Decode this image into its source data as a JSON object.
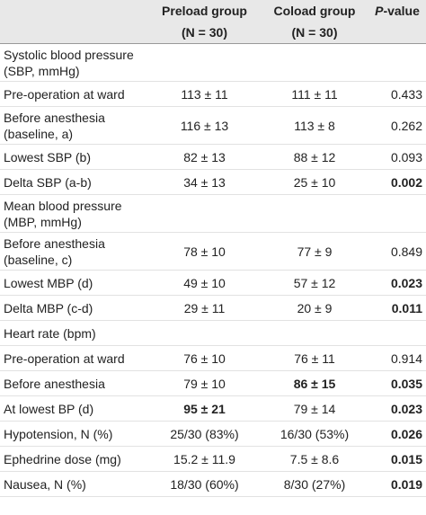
{
  "header": {
    "preload": [
      "Preload group",
      "(N = 30)"
    ],
    "coload": [
      "Coload group",
      "(N = 30)"
    ],
    "p_value_italic": "P",
    "p_value_rest": "-value"
  },
  "rows": [
    [
      "Systolic blood pressure (SBP, mmHg)"
    ],
    [
      "Pre-operation at ward",
      "113 ± 11",
      "111 ± 11",
      "0.433"
    ],
    [
      "Before anesthesia (baseline, a)",
      "116 ± 13",
      "113 ± 8",
      "0.262"
    ],
    [
      "Lowest SBP (b)",
      "82 ± 13",
      "88 ± 12",
      "0.093"
    ],
    [
      "Delta SBP (a-b)",
      "34 ± 13",
      "25 ± 10",
      "0.002"
    ],
    [
      "Mean blood pressure (MBP, mmHg)"
    ],
    [
      "Before anesthesia (baseline, c)",
      "78 ± 10",
      "77 ± 9",
      "0.849"
    ],
    [
      "Lowest MBP (d)",
      "49 ± 10",
      "57 ± 12",
      "0.023"
    ],
    [
      "Delta MBP (c-d)",
      "29 ± 11",
      "20 ± 9",
      "0.011"
    ],
    [
      "Heart rate (bpm)"
    ],
    [
      "Pre-operation at ward",
      "76 ± 10",
      "76 ± 11",
      "0.914"
    ],
    [
      "Before anesthesia",
      "79 ± 10",
      "86 ± 15",
      "0.035"
    ],
    [
      "At lowest BP (d)",
      "95 ± 21",
      "79 ± 14",
      "0.023"
    ],
    [
      "Hypotension, N (%)",
      "25/30 (83%)",
      "16/30 (53%)",
      "0.026"
    ],
    [
      "Ephedrine dose (mg)",
      "15.2 ± 11.9",
      "7.5 ± 8.6",
      "0.015"
    ],
    [
      "Nausea, N (%)",
      "18/30 (60%)",
      "8/30 (27%)",
      "0.019"
    ]
  ]
}
